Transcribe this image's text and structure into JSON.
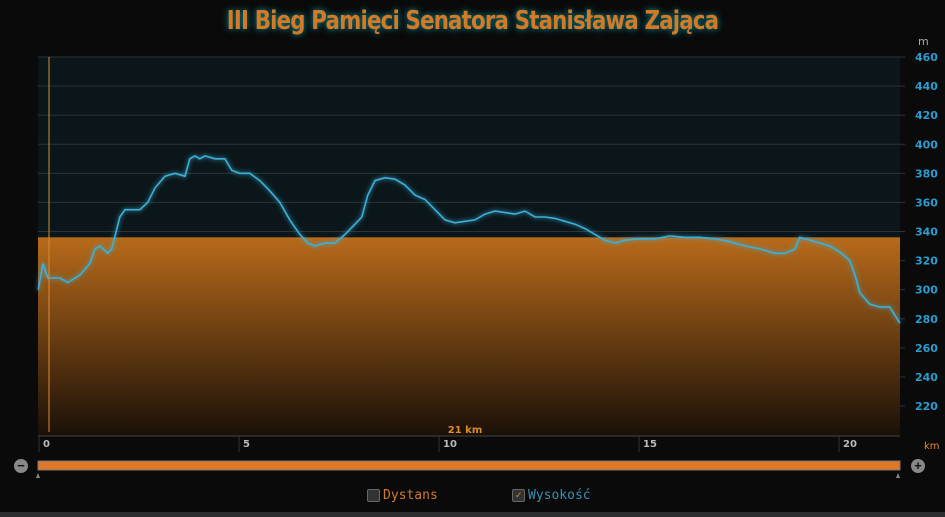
{
  "title": "III Bieg Pamięci Senatora Stanisława Zająca",
  "controls": {
    "zoom_out": "−",
    "zoom_in": "+",
    "dystans": "Dystans",
    "wysokosc": "Wysokość",
    "wysokosc_checked": "✓"
  },
  "chart_data": {
    "type": "area",
    "title": "III Bieg Pamięci Senatora Stanisława Zająca",
    "xlabel": "km",
    "ylabel": "m",
    "xlim": [
      0,
      21.3
    ],
    "ylim": [
      200,
      460
    ],
    "xticks": [
      "0",
      "5",
      "10",
      "15",
      "20"
    ],
    "yticks": [
      "220",
      "240",
      "260",
      "280",
      "300",
      "320",
      "340",
      "360",
      "380",
      "400",
      "420",
      "440",
      "460"
    ],
    "marker_label": "21 km",
    "highlight_band_elevation": 336,
    "colors": {
      "line": "#3ab0d8",
      "band": "#b86a1a",
      "marker": "#e08a30"
    },
    "points": [
      [
        -0.22,
        300
      ],
      [
        -0.1,
        318
      ],
      [
        0.02,
        308
      ],
      [
        0.32,
        308
      ],
      [
        0.52,
        305
      ],
      [
        0.82,
        310
      ],
      [
        1.07,
        318
      ],
      [
        1.2,
        328
      ],
      [
        1.32,
        330
      ],
      [
        1.52,
        325
      ],
      [
        1.62,
        328
      ],
      [
        1.82,
        350
      ],
      [
        1.95,
        355
      ],
      [
        2.32,
        355
      ],
      [
        2.52,
        360
      ],
      [
        2.7,
        370
      ],
      [
        2.95,
        378
      ],
      [
        3.2,
        380
      ],
      [
        3.45,
        378
      ],
      [
        3.57,
        390
      ],
      [
        3.7,
        392
      ],
      [
        3.82,
        390
      ],
      [
        3.95,
        392
      ],
      [
        4.2,
        390
      ],
      [
        4.45,
        390
      ],
      [
        4.62,
        382
      ],
      [
        4.82,
        380
      ],
      [
        5.07,
        380
      ],
      [
        5.32,
        375
      ],
      [
        5.57,
        368
      ],
      [
        5.82,
        360
      ],
      [
        6.07,
        348
      ],
      [
        6.32,
        338
      ],
      [
        6.52,
        332
      ],
      [
        6.7,
        330
      ],
      [
        6.95,
        332
      ],
      [
        7.2,
        332
      ],
      [
        7.45,
        338
      ],
      [
        7.7,
        345
      ],
      [
        7.87,
        350
      ],
      [
        8.02,
        365
      ],
      [
        8.2,
        375
      ],
      [
        8.45,
        377
      ],
      [
        8.7,
        376
      ],
      [
        8.95,
        372
      ],
      [
        9.2,
        365
      ],
      [
        9.45,
        362
      ],
      [
        9.7,
        355
      ],
      [
        9.95,
        348
      ],
      [
        10.2,
        346
      ],
      [
        10.45,
        347
      ],
      [
        10.7,
        348
      ],
      [
        10.95,
        352
      ],
      [
        11.2,
        354
      ],
      [
        11.45,
        353
      ],
      [
        11.7,
        352
      ],
      [
        11.95,
        354
      ],
      [
        12.2,
        350
      ],
      [
        12.45,
        350
      ],
      [
        12.7,
        349
      ],
      [
        12.95,
        347
      ],
      [
        13.2,
        345
      ],
      [
        13.45,
        342
      ],
      [
        13.7,
        338
      ],
      [
        13.95,
        334
      ],
      [
        14.2,
        332
      ],
      [
        14.45,
        334
      ],
      [
        14.82,
        335
      ],
      [
        15.2,
        335
      ],
      [
        15.57,
        337
      ],
      [
        15.95,
        336
      ],
      [
        16.32,
        336
      ],
      [
        16.7,
        335
      ],
      [
        17.07,
        333
      ],
      [
        17.45,
        330
      ],
      [
        17.82,
        328
      ],
      [
        18.2,
        325
      ],
      [
        18.45,
        325
      ],
      [
        18.7,
        328
      ],
      [
        18.82,
        336
      ],
      [
        19.07,
        334
      ],
      [
        19.32,
        332
      ],
      [
        19.57,
        330
      ],
      [
        19.82,
        326
      ],
      [
        20.07,
        320
      ],
      [
        20.2,
        310
      ],
      [
        20.32,
        298
      ],
      [
        20.57,
        290
      ],
      [
        20.82,
        288
      ],
      [
        21.07,
        288
      ],
      [
        21.32,
        277
      ]
    ]
  }
}
